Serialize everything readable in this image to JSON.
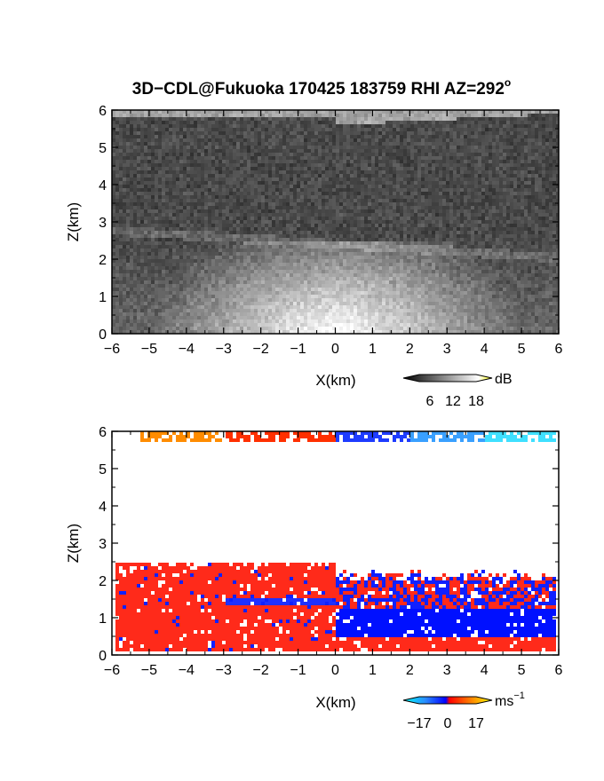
{
  "title_main": "3D−CDL@Fukuoka 170425 183759 RHI AZ=292",
  "title_sup": "o",
  "chart_data": [
    {
      "type": "heatmap",
      "name": "reflectivity",
      "xlabel": "X(km)",
      "ylabel": "Z(km)",
      "xlim": [
        -6,
        6
      ],
      "ylim": [
        0,
        6
      ],
      "x_ticks": [
        -6,
        -5,
        -4,
        -3,
        -2,
        -1,
        0,
        1,
        2,
        3,
        4,
        5,
        6
      ],
      "y_ticks": [
        0,
        1,
        2,
        3,
        4,
        5,
        6
      ],
      "x_tick_labels": [
        "−6",
        "−5",
        "−4",
        "−3",
        "−2",
        "−1",
        "0",
        "1",
        "2",
        "3",
        "4",
        "5",
        "6"
      ],
      "y_tick_labels": [
        "0",
        "1",
        "2",
        "3",
        "4",
        "5",
        "6"
      ],
      "colormap": "grayscale",
      "colorbar": {
        "ticks": [
          6,
          12,
          18
        ],
        "tick_labels": [
          "6",
          "12",
          "18"
        ],
        "unit": "dB"
      }
    },
    {
      "type": "heatmap",
      "name": "radial-velocity",
      "xlabel": "X(km)",
      "ylabel": "Z(km)",
      "xlim": [
        -6,
        6
      ],
      "ylim": [
        0,
        6
      ],
      "x_ticks": [
        -6,
        -5,
        -4,
        -3,
        -2,
        -1,
        0,
        1,
        2,
        3,
        4,
        5,
        6
      ],
      "y_ticks": [
        0,
        1,
        2,
        3,
        4,
        5,
        6
      ],
      "x_tick_labels": [
        "−6",
        "−5",
        "−4",
        "−3",
        "−2",
        "−1",
        "0",
        "1",
        "2",
        "3",
        "4",
        "5",
        "6"
      ],
      "y_tick_labels": [
        "0",
        "1",
        "2",
        "3",
        "4",
        "5",
        "6"
      ],
      "colormap": "blue-red diverging",
      "colorbar": {
        "ticks": [
          -17,
          0,
          17
        ],
        "tick_labels": [
          "−17",
          "0",
          "17"
        ],
        "unit": "ms",
        "unit_sup": "−1"
      }
    }
  ]
}
